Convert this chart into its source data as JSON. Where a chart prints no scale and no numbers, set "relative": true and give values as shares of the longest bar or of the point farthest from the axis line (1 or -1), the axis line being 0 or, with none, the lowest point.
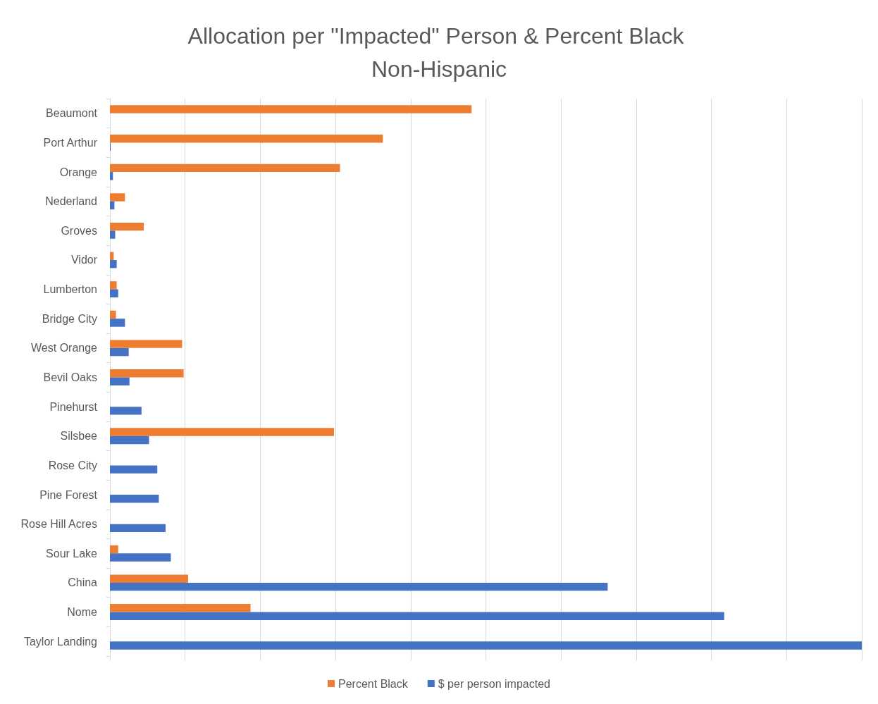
{
  "chart_data": {
    "type": "bar",
    "orientation": "horizontal",
    "relative": true,
    "title": "Allocation per \"Impacted\" Person & Percent Black Non-Hispanic",
    "categories": [
      "Beaumont",
      "Port Arthur",
      "Orange",
      "Nederland",
      "Groves",
      "Vidor",
      "Lumberton",
      "Bridge City",
      "West Orange",
      "Bevil Oaks",
      "Pinehurst",
      "Silsbee",
      "Rose City",
      "Pine Forest",
      "Rose Hill Acres",
      "Sour Lake",
      "China",
      "Nome",
      "Taylor Landing"
    ],
    "series": [
      {
        "name": "Percent Black",
        "color": "#ed7d31",
        "values": [
          0.481,
          0.363,
          0.306,
          0.02,
          0.045,
          0.005,
          0.009,
          0.008,
          0.096,
          0.098,
          0,
          0.298,
          0,
          0,
          0,
          0.011,
          0.104,
          0.187,
          0
        ]
      },
      {
        "name": "$ per person impacted",
        "color": "#4472c4",
        "values": [
          0,
          0.001,
          0.004,
          0.006,
          0.007,
          0.009,
          0.011,
          0.02,
          0.025,
          0.026,
          0.042,
          0.052,
          0.063,
          0.065,
          0.074,
          0.081,
          0.662,
          0.817,
          1
        ]
      }
    ],
    "grid": "x",
    "legend": "bottom"
  }
}
